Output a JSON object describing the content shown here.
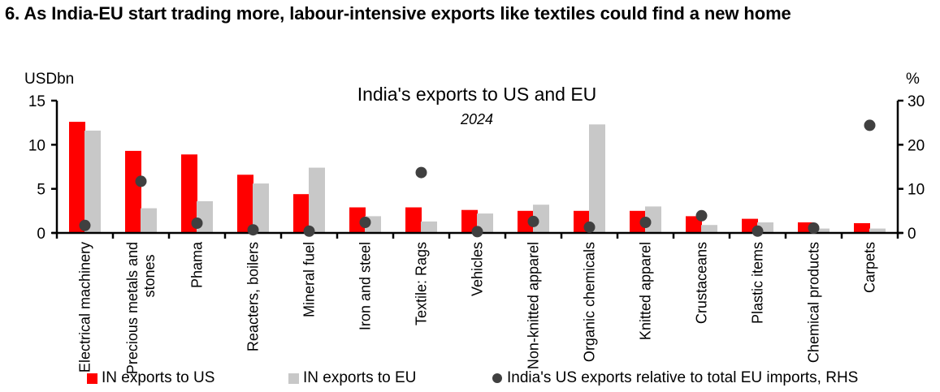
{
  "heading": "6. As India-EU start trading more, labour-intensive exports like textiles could find a new home",
  "chart_data": {
    "type": "bar",
    "title": "India's exports to US and EU",
    "subtitle": "2024",
    "ylabel_left": "USDbn",
    "ylabel_right": "%",
    "ylim_left": [
      0,
      15
    ],
    "yticks_left": [
      0,
      5,
      10,
      15
    ],
    "ylim_right": [
      0,
      30
    ],
    "yticks_right": [
      0,
      10,
      20,
      30
    ],
    "grid": false,
    "legend_position": "bottom",
    "categories": [
      "Electrical machinery",
      "Precious metals and stones",
      "Phama",
      "Reacters, boilers",
      "Mineral fuel",
      "Iron and steel",
      "Textile: Rags",
      "Vehicles",
      "Non-knitted apparel",
      "Organic chemicals",
      "Knitted apparel",
      "Crustaceans",
      "Plastic items",
      "Chemical products",
      "Carpets"
    ],
    "category_lines": [
      [
        "Electrical machinery"
      ],
      [
        "Precious metals and",
        "stones"
      ],
      [
        "Phama"
      ],
      [
        "Reacters, boilers"
      ],
      [
        "Mineral fuel"
      ],
      [
        "Iron and steel"
      ],
      [
        "Textile: Rags"
      ],
      [
        "Vehicles"
      ],
      [
        "Non-knitted apparel"
      ],
      [
        "Organic chemicals"
      ],
      [
        "Knitted apparel"
      ],
      [
        "Crustaceans"
      ],
      [
        "Plastic items"
      ],
      [
        "Chemical products"
      ],
      [
        "Carpets"
      ]
    ],
    "series": [
      {
        "name": "IN exports to US",
        "type": "bar",
        "axis": "left",
        "color": "#ff0000",
        "values": [
          12.6,
          9.3,
          8.9,
          6.6,
          4.4,
          2.9,
          2.9,
          2.6,
          2.5,
          2.5,
          2.5,
          1.9,
          1.6,
          1.2,
          1.1
        ]
      },
      {
        "name": "IN exports to EU",
        "type": "bar",
        "axis": "left",
        "color": "#c8c8c8",
        "values": [
          11.6,
          2.8,
          3.6,
          5.6,
          7.4,
          1.9,
          1.3,
          2.2,
          3.2,
          12.3,
          3.0,
          0.9,
          1.2,
          0.5,
          0.5
        ]
      },
      {
        "name": "India's US exports relative to total EU imports, RHS",
        "type": "scatter",
        "axis": "right",
        "color": "#404040",
        "values": [
          1.7,
          11.7,
          2.2,
          0.7,
          0.4,
          2.4,
          13.7,
          0.3,
          2.6,
          1.3,
          2.4,
          3.9,
          0.4,
          1.1,
          24.4
        ]
      }
    ]
  }
}
